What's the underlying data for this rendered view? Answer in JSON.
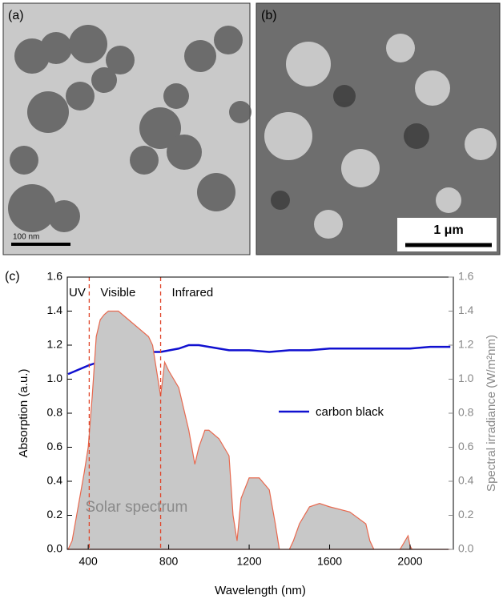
{
  "panels": [
    {
      "label": "(a)",
      "scale_bar": "100 nm"
    },
    {
      "label": "(b)",
      "scale_bar": "1 μm"
    }
  ],
  "chart_data": {
    "type": "line",
    "panel_label": "(c)",
    "xlabel": "Wavelength (nm)",
    "ylabel": "Absorption (a.u.)",
    "y2label": "Spectral irradiance (W/m²nm)",
    "xlim": [
      296,
      2215
    ],
    "ylim": [
      0,
      1.6
    ],
    "y2lim": [
      0,
      1.6
    ],
    "xticks": [
      400,
      800,
      1200,
      1600,
      2000
    ],
    "yticks": [
      {
        "value": 0,
        "label": "0.0"
      },
      0.2,
      0.4,
      0.6,
      0.8,
      {
        "value": 1,
        "label": "1.0"
      },
      1.2,
      1.4,
      1.6
    ],
    "y2ticks": [
      {
        "value": 0,
        "label": "0.0"
      },
      0.2,
      0.4,
      0.6,
      0.8,
      {
        "value": 1,
        "label": "1.0"
      },
      1.2,
      1.4,
      1.6
    ],
    "regions": [
      {
        "label": "UV",
        "end": 405
      },
      {
        "label": "Visible",
        "end": 760
      },
      {
        "label": "Infrared"
      }
    ],
    "area_label": "Solar spectrum",
    "series": [
      {
        "name": "carbon black",
        "color": "#1010d0",
        "x": [
          300,
          400,
          500,
          600,
          700,
          760,
          850,
          900,
          950,
          1000,
          1100,
          1200,
          1300,
          1400,
          1500,
          1600,
          1700,
          1800,
          1900,
          2000,
          2100,
          2200
        ],
        "values": [
          1.03,
          1.08,
          1.12,
          1.14,
          1.16,
          1.16,
          1.18,
          1.2,
          1.2,
          1.19,
          1.17,
          1.17,
          1.16,
          1.17,
          1.17,
          1.18,
          1.18,
          1.18,
          1.18,
          1.18,
          1.19,
          1.19
        ]
      },
      {
        "axis": "y2",
        "color": "#c8c8c8",
        "edge": "#e8694f",
        "x": [
          300,
          320,
          350,
          380,
          400,
          420,
          440,
          460,
          480,
          500,
          550,
          600,
          650,
          700,
          720,
          760,
          780,
          800,
          850,
          900,
          930,
          950,
          980,
          1000,
          1050,
          1100,
          1120,
          1140,
          1160,
          1200,
          1250,
          1300,
          1330,
          1350,
          1400,
          1420,
          1450,
          1500,
          1550,
          1600,
          1700,
          1780,
          1800,
          1820,
          1950,
          1980,
          1990,
          2000,
          2010,
          2200
        ],
        "values": [
          0,
          0.05,
          0.25,
          0.45,
          0.6,
          0.9,
          1.25,
          1.35,
          1.38,
          1.4,
          1.4,
          1.35,
          1.3,
          1.25,
          1.2,
          0.9,
          1.1,
          1.05,
          0.95,
          0.7,
          0.5,
          0.6,
          0.7,
          0.7,
          0.65,
          0.55,
          0.2,
          0.05,
          0.3,
          0.42,
          0.42,
          0.35,
          0.15,
          0,
          0,
          0.05,
          0.15,
          0.25,
          0.27,
          0.25,
          0.22,
          0.15,
          0.05,
          0,
          0,
          0.06,
          0.08,
          0.02,
          0,
          0
        ]
      }
    ]
  }
}
